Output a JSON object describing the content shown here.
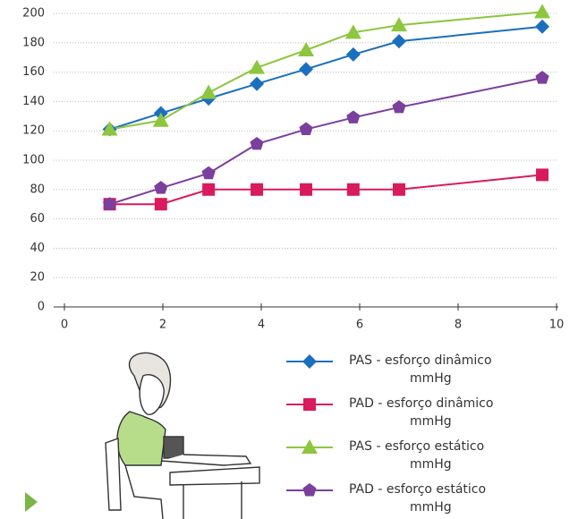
{
  "chart_data": {
    "type": "line",
    "x": [
      0.92,
      1.96,
      2.93,
      3.91,
      4.91,
      5.87,
      6.8,
      9.71
    ],
    "series": [
      {
        "name": "PAS - esforço dinâmico mmHg",
        "color": "#1b6fbf",
        "marker": "diamond",
        "values": [
          121,
          132,
          142,
          152,
          162,
          172,
          181,
          191
        ]
      },
      {
        "name": "PAD - esforço dinâmico mmHg",
        "color": "#d91a5c",
        "marker": "square",
        "values": [
          70,
          70,
          80,
          80,
          80,
          80,
          80,
          90
        ]
      },
      {
        "name": "PAS - esforço estático mmHg",
        "color": "#8dc63f",
        "marker": "triangle",
        "values": [
          121,
          127,
          146,
          163,
          175,
          187,
          192,
          201
        ]
      },
      {
        "name": "PAD - esforço estático mmHg",
        "color": "#7b3f9e",
        "marker": "pentagon",
        "values": [
          70,
          81,
          91,
          111,
          121,
          129,
          136,
          156
        ]
      }
    ],
    "xlim": [
      0,
      10
    ],
    "xticks": [
      0,
      2,
      4,
      6,
      8,
      10
    ],
    "ylim": [
      0,
      200
    ],
    "yticks": [
      0,
      20,
      40,
      60,
      80,
      100,
      120,
      140,
      160,
      180,
      200
    ],
    "grid": true
  }
}
